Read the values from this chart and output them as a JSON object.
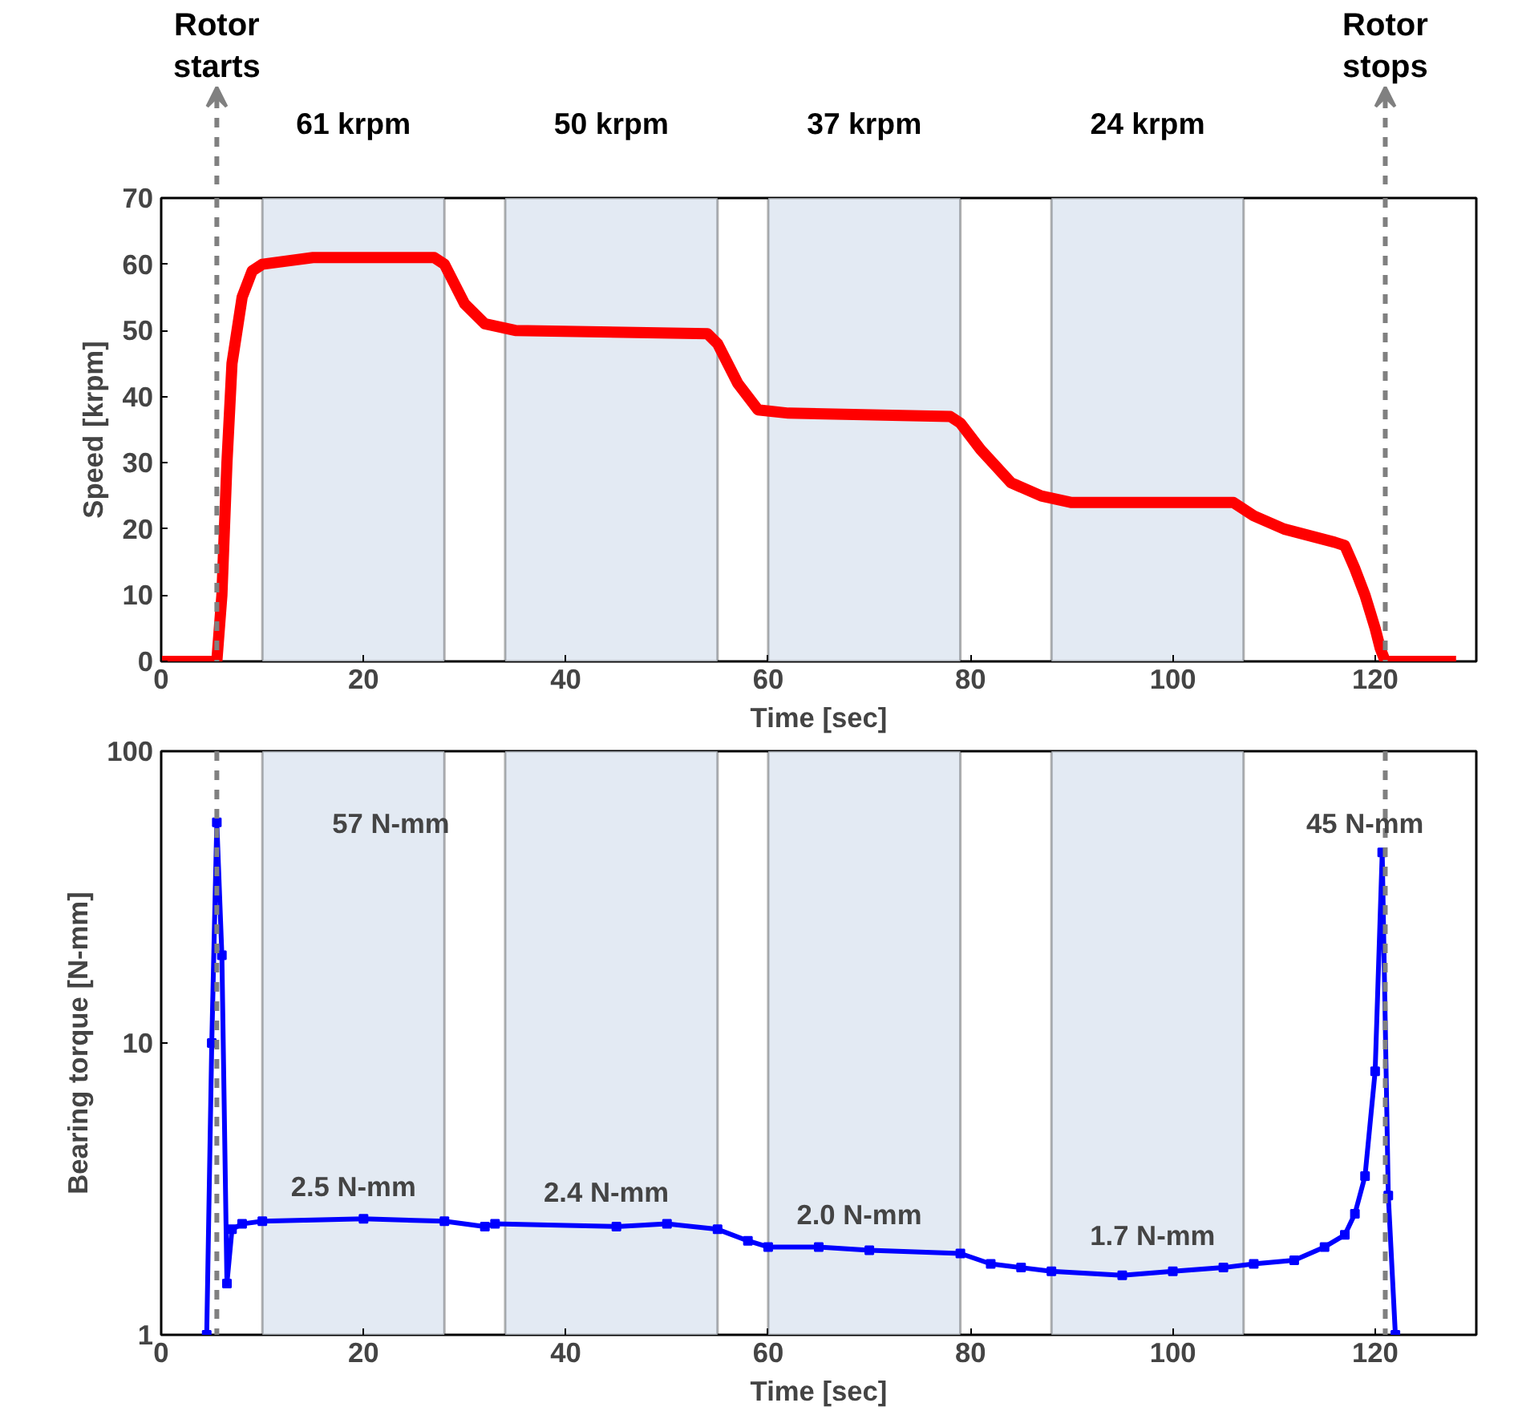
{
  "chart_data": [
    {
      "type": "line",
      "xlabel": "Time [sec]",
      "ylabel": "Speed [krpm]",
      "xlim": [
        0,
        130
      ],
      "ylim": [
        0,
        70
      ],
      "xticks": [
        0,
        20,
        40,
        60,
        80,
        100,
        120
      ],
      "yticks": [
        0,
        10,
        20,
        30,
        40,
        50,
        60,
        70
      ],
      "grid": false,
      "line_style": "solid",
      "series": [
        {
          "color": "#ff0000",
          "x": [
            0,
            5,
            5.5,
            6,
            6.5,
            7,
            8,
            9,
            10,
            15,
            27,
            28,
            30,
            32,
            35,
            54,
            55,
            57,
            59,
            62,
            78,
            79,
            81,
            84,
            87,
            90,
            106,
            108,
            111,
            116,
            117,
            118,
            119,
            120,
            120.5,
            121,
            128
          ],
          "values": [
            0,
            0,
            0,
            10,
            30,
            45,
            55,
            59,
            60,
            61,
            61,
            60,
            54,
            51,
            50,
            49.5,
            48,
            42,
            38,
            37.5,
            37,
            36,
            32,
            27,
            25,
            24,
            24,
            22,
            20,
            18,
            17.5,
            14,
            10,
            5,
            2,
            0,
            0
          ]
        }
      ],
      "ref_lines": [
        {
          "axis": "x",
          "value": 5.5,
          "label": "Rotor starts",
          "color": "#808080",
          "line_style": "dashed"
        },
        {
          "axis": "x",
          "value": 121,
          "label": "Rotor stops",
          "color": "#808080",
          "line_style": "dashed"
        }
      ],
      "bands": [
        {
          "axis": "x",
          "from": 10,
          "to": 28,
          "label": "61 krpm",
          "color": "#e3eaf3"
        },
        {
          "axis": "x",
          "from": 34,
          "to": 55,
          "label": "50 krpm",
          "color": "#e3eaf3"
        },
        {
          "axis": "x",
          "from": 60,
          "to": 79,
          "label": "37 krpm",
          "color": "#e3eaf3"
        },
        {
          "axis": "x",
          "from": 88,
          "to": 107,
          "label": "24 krpm",
          "color": "#e3eaf3"
        }
      ]
    },
    {
      "type": "line",
      "xlabel": "Time [sec]",
      "ylabel": "Bearing torque [N-mm]",
      "log": "y",
      "xlim": [
        0,
        130
      ],
      "ylim": [
        1,
        100
      ],
      "xticks": [
        0,
        20,
        40,
        60,
        80,
        100,
        120
      ],
      "yticks": [
        1,
        10,
        100
      ],
      "grid": false,
      "line_style": "solid",
      "marker": "square",
      "series": [
        {
          "color": "#0000ff",
          "x": [
            4.5,
            5,
            5.5,
            6,
            6.5,
            7,
            8,
            10,
            20,
            28,
            32,
            33,
            45,
            50,
            55,
            58,
            60,
            65,
            70,
            79,
            82,
            85,
            88,
            95,
            100,
            105,
            108,
            112,
            115,
            117,
            118,
            119,
            120,
            120.7,
            121.3,
            122
          ],
          "values": [
            1,
            10,
            57,
            20,
            1.5,
            2.3,
            2.4,
            2.45,
            2.5,
            2.45,
            2.35,
            2.4,
            2.35,
            2.4,
            2.3,
            2.1,
            2.0,
            2.0,
            1.95,
            1.9,
            1.75,
            1.7,
            1.65,
            1.6,
            1.65,
            1.7,
            1.75,
            1.8,
            2.0,
            2.2,
            2.6,
            3.5,
            8,
            45,
            3,
            1
          ]
        }
      ],
      "ref_lines": [
        {
          "axis": "x",
          "value": 5.5,
          "color": "#808080",
          "line_style": "dashed"
        },
        {
          "axis": "x",
          "value": 121,
          "color": "#808080",
          "line_style": "dashed"
        }
      ],
      "bands": [
        {
          "axis": "x",
          "from": 10,
          "to": 28,
          "color": "#e3eaf3"
        },
        {
          "axis": "x",
          "from": 34,
          "to": 55,
          "color": "#e3eaf3"
        },
        {
          "axis": "x",
          "from": 60,
          "to": 79,
          "color": "#e3eaf3"
        },
        {
          "axis": "x",
          "from": 88,
          "to": 107,
          "color": "#e3eaf3"
        }
      ],
      "annotations": [
        "57 N-mm",
        {
          "text": "2.5 N-mm",
          "x": 19,
          "y": 2.5
        },
        {
          "text": "2.4 N-mm",
          "x": 44,
          "y": 2.4
        },
        {
          "text": "2.0 N-mm",
          "x": 69,
          "y": 2.0
        },
        {
          "text": "1.7 N-mm",
          "x": 98,
          "y": 1.7
        },
        "45 N-mm"
      ]
    }
  ]
}
